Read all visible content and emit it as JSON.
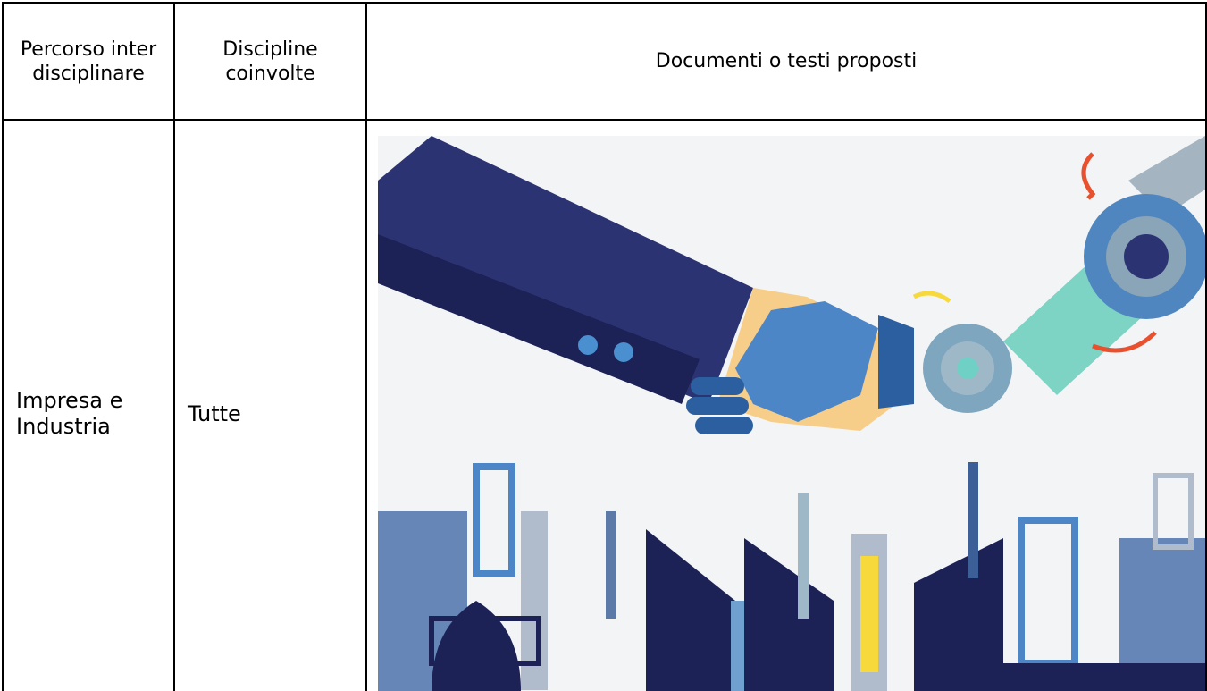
{
  "table": {
    "header": [
      "Percorso interdisciplinare",
      "Discipline coinvolte",
      "Documenti o testi proposti"
    ],
    "rows": [
      [
        "Impresa e Industria",
        "Tutte"
      ]
    ]
  }
}
